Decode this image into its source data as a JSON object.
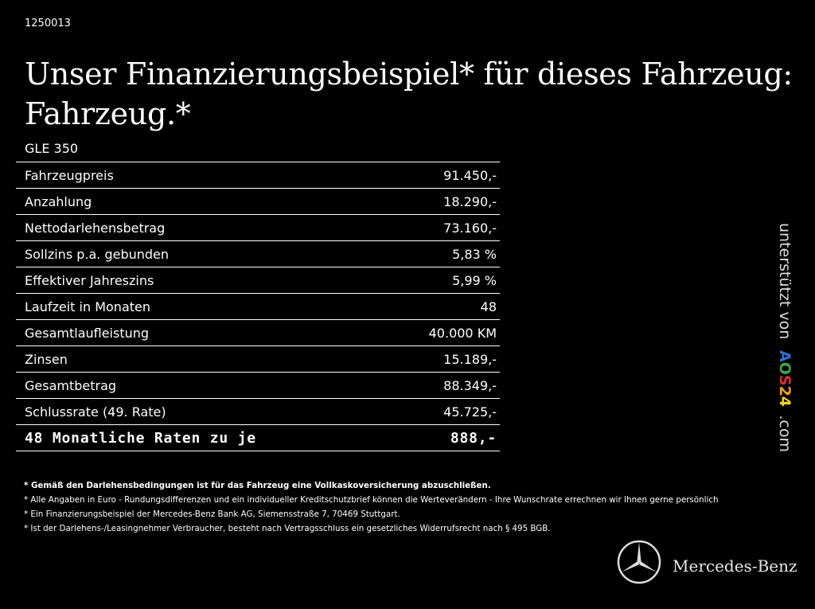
{
  "id": "1250013",
  "title_line1": "Unser Finanzierungsbeispiel* für dieses Fahrzeug:",
  "title_line2": "Fahrzeug.*",
  "model": "GLE 350",
  "rows": [
    {
      "label": "Fahrzeugpreis",
      "value": "91.450,-"
    },
    {
      "label": "Anzahlung",
      "value": "18.290,-"
    },
    {
      "label": "Nettodarlehensbetrag",
      "value": "73.160,-"
    },
    {
      "label": "Sollzins p.a. gebunden",
      "value": "5,83 %"
    },
    {
      "label": "Effektiver Jahreszins",
      "value": "5,99 %"
    },
    {
      "label": "Laufzeit in Monaten",
      "value": "48"
    },
    {
      "label": "Gesamtlaufleistung",
      "value": "40.000 KM"
    },
    {
      "label": "Zinsen",
      "value": "15.189,-"
    },
    {
      "label": "Gesamtbetrag",
      "value": "88.349,-"
    },
    {
      "label": "Schlussrate (49. Rate)",
      "value": "45.725,-"
    }
  ],
  "total": {
    "label": "48 Monatliche Raten zu je",
    "value": "888,-"
  },
  "notes": [
    "* Gemäß den Darlehensbedingungen ist für das Fahrzeug eine Vollkaskoversicherung abzuschließen.",
    "* Alle Angaben in Euro - Rundungsdifferenzen und ein individueller Kreditschutzbrief können die Werteverändern - Ihre Wunschrate errechnen wir Ihnen gerne persönlich",
    "* Ein Finanzierungsbeispiel der Mercedes-Benz Bank AG, Siemensstraße 7, 70469 Stuttgart.",
    "* Ist der Darlehens-/Leasingnehmer Verbraucher, besteht nach Vertragsschluss ein gesetzliches Widerrufsrecht nach § 495 BGB."
  ],
  "sponsor": {
    "prefix": "unterstützt von",
    "letters": [
      {
        "ch": "A",
        "color": "#2f6fd0"
      },
      {
        "ch": "O",
        "color": "#3aa84a"
      },
      {
        "ch": "S",
        "color": "#d8302c"
      },
      {
        "ch": "2",
        "color": "#f0a020"
      },
      {
        "ch": "4",
        "color": "#f2d21e"
      }
    ],
    "suffix": ".com"
  },
  "brand": {
    "name": "Mercedes-Benz",
    "icon": "mercedes-star-icon"
  }
}
